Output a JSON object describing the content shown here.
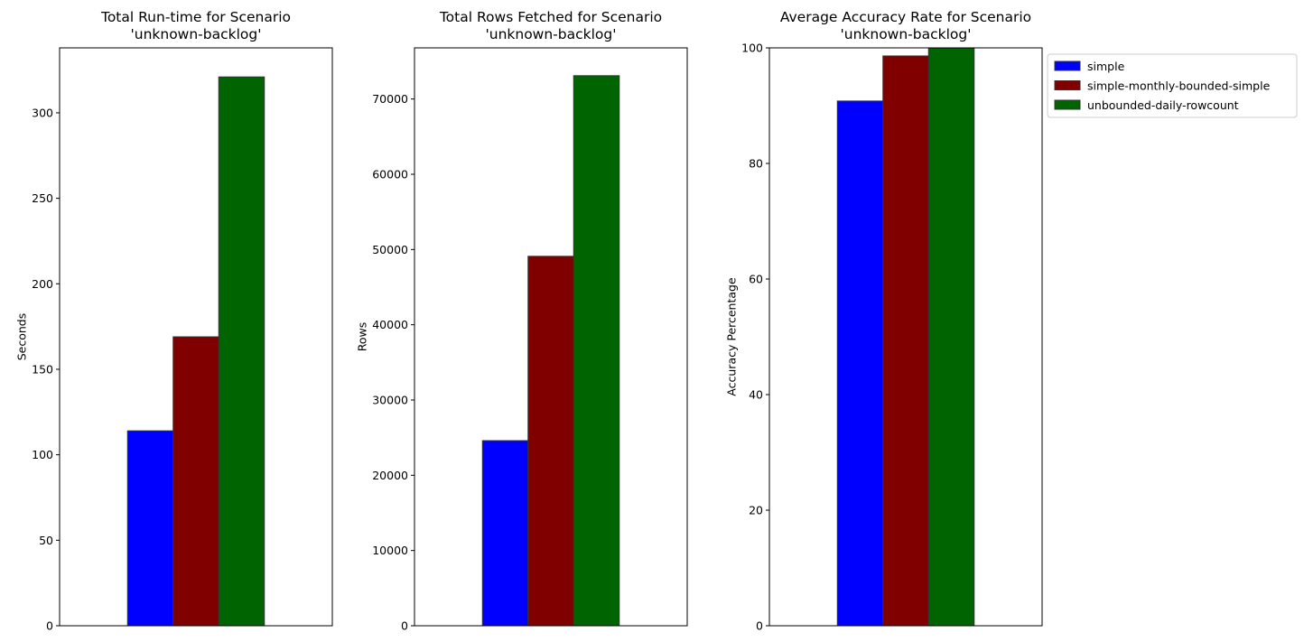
{
  "series_colors": {
    "simple": "#0000ff",
    "simple-monthly-bounded-simple": "#800000",
    "unbounded-daily-rowcount": "#006400"
  },
  "chart_data": [
    {
      "type": "bar",
      "title_lines": [
        "Total Run-time for Scenario",
        "'unknown-backlog'"
      ],
      "xlabel": "",
      "ylabel": "Seconds",
      "ylim": [
        0,
        338
      ],
      "yticks": [
        0,
        50,
        100,
        150,
        200,
        250,
        300
      ],
      "series": [
        {
          "name": "simple",
          "value": 114
        },
        {
          "name": "simple-monthly-bounded-simple",
          "value": 169
        },
        {
          "name": "unbounded-daily-rowcount",
          "value": 321
        }
      ]
    },
    {
      "type": "bar",
      "title_lines": [
        "Total Rows Fetched for Scenario",
        "'unknown-backlog'"
      ],
      "xlabel": "",
      "ylabel": "Rows",
      "ylim": [
        0,
        76800
      ],
      "yticks": [
        0,
        10000,
        20000,
        30000,
        40000,
        50000,
        60000,
        70000
      ],
      "series": [
        {
          "name": "simple",
          "value": 24600
        },
        {
          "name": "simple-monthly-bounded-simple",
          "value": 49100
        },
        {
          "name": "unbounded-daily-rowcount",
          "value": 73100
        }
      ]
    },
    {
      "type": "bar",
      "title_lines": [
        "Average Accuracy Rate for Scenario",
        "'unknown-backlog'"
      ],
      "xlabel": "",
      "ylabel": "Accuracy Percentage",
      "ylim": [
        0,
        100
      ],
      "yticks": [
        0,
        20,
        40,
        60,
        80,
        100
      ],
      "series": [
        {
          "name": "simple",
          "value": 90.8
        },
        {
          "name": "simple-monthly-bounded-simple",
          "value": 98.6
        },
        {
          "name": "unbounded-daily-rowcount",
          "value": 100
        }
      ],
      "legend": {
        "placement": "outside-upper-right",
        "entries": [
          "simple",
          "simple-monthly-bounded-simple",
          "unbounded-daily-rowcount"
        ]
      }
    }
  ]
}
